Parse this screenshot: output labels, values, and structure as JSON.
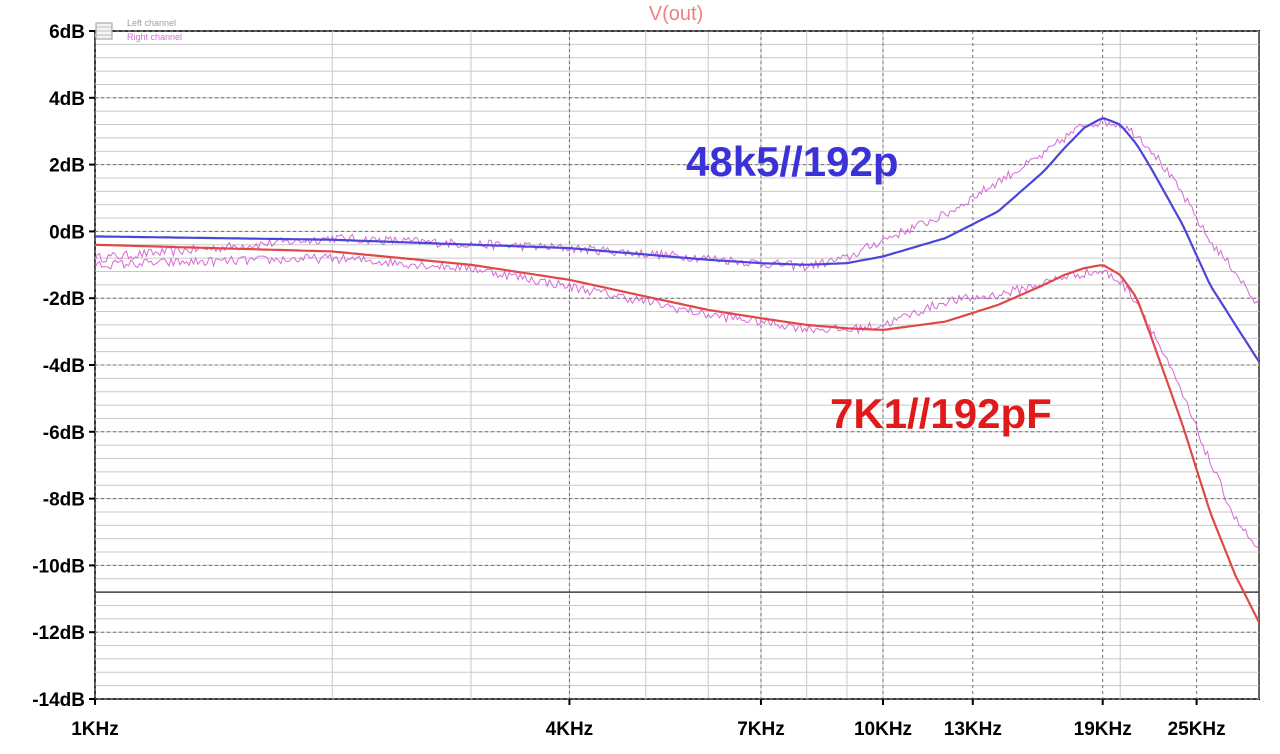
{
  "chart_data": {
    "type": "line",
    "title": "V(out)",
    "xscale": "log",
    "xlim": [
      1000,
      30000
    ],
    "ylim": [
      -14,
      6
    ],
    "y_ticks": [
      {
        "value": 6,
        "label": "6dB"
      },
      {
        "value": 4,
        "label": "4dB"
      },
      {
        "value": 2,
        "label": "2dB"
      },
      {
        "value": 0,
        "label": "0dB"
      },
      {
        "value": -2,
        "label": "-2dB"
      },
      {
        "value": -4,
        "label": "-4dB"
      },
      {
        "value": -6,
        "label": "-6dB"
      },
      {
        "value": -8,
        "label": "-8dB"
      },
      {
        "value": -10,
        "label": "-10dB"
      },
      {
        "value": -12,
        "label": "-12dB"
      },
      {
        "value": -14,
        "label": "-14dB"
      }
    ],
    "x_ticks": [
      {
        "value": 1000,
        "label": "1KHz"
      },
      {
        "value": 4000,
        "label": "4KHz"
      },
      {
        "value": 7000,
        "label": "7KHz"
      },
      {
        "value": 10000,
        "label": "10KHz"
      },
      {
        "value": 13000,
        "label": "13KHz"
      },
      {
        "value": 19000,
        "label": "19KHz"
      },
      {
        "value": 25000,
        "label": "25KHz"
      }
    ],
    "grid": true,
    "legend": {
      "placement": "top-left",
      "entries": [
        {
          "name": "Left channel",
          "color": "#a0a0a0"
        },
        {
          "name": "Right channel",
          "color": "#d070d0"
        }
      ]
    },
    "annotations": [
      {
        "text": "48k5//192p",
        "color": "#3a32d6"
      },
      {
        "text": "7K1//192pF",
        "color": "#e01a1a"
      }
    ],
    "series": [
      {
        "label_ref": "48k5//192p",
        "kind": "simulated",
        "color": "#4a46d8",
        "x": [
          1000,
          2000,
          4000,
          6000,
          7000,
          8000,
          9000,
          10000,
          12000,
          14000,
          16000,
          17000,
          18000,
          19000,
          20000,
          21000,
          22000,
          24000,
          26000,
          28000,
          30000
        ],
        "y": [
          -0.15,
          -0.25,
          -0.5,
          -0.85,
          -0.95,
          -1.0,
          -0.95,
          -0.75,
          -0.2,
          0.6,
          1.8,
          2.5,
          3.1,
          3.4,
          3.2,
          2.6,
          1.8,
          0.2,
          -1.6,
          -2.8,
          -3.9
        ]
      },
      {
        "label_ref": "48k5//192p",
        "kind": "measured",
        "color": "#d050d0",
        "x": [
          1000,
          2000,
          4000,
          6000,
          7000,
          8000,
          9000,
          10000,
          12000,
          14000,
          16000,
          17000,
          18000,
          19000,
          20000,
          21000,
          22000,
          24000,
          26000,
          28000,
          30000
        ],
        "y": [
          -0.8,
          -0.2,
          -0.5,
          -0.8,
          -0.95,
          -1.05,
          -0.8,
          -0.25,
          0.5,
          1.5,
          2.3,
          2.8,
          3.2,
          3.3,
          3.2,
          2.9,
          2.4,
          1.1,
          -0.3,
          -1.2,
          -2.3
        ]
      },
      {
        "label_ref": "7K1//192pF",
        "kind": "simulated",
        "color": "#e04848",
        "x": [
          1000,
          2000,
          3000,
          4000,
          5000,
          6000,
          7000,
          8000,
          9000,
          10000,
          12000,
          14000,
          16000,
          17000,
          18000,
          19000,
          20000,
          21000,
          22000,
          24000,
          26000,
          28000,
          30000
        ],
        "y": [
          -0.4,
          -0.6,
          -1.0,
          -1.45,
          -1.95,
          -2.35,
          -2.6,
          -2.8,
          -2.9,
          -2.95,
          -2.7,
          -2.2,
          -1.6,
          -1.3,
          -1.1,
          -1.0,
          -1.3,
          -2.0,
          -3.3,
          -5.8,
          -8.4,
          -10.3,
          -11.7
        ]
      },
      {
        "label_ref": "7K1//192pF",
        "kind": "measured",
        "color": "#d050d0",
        "x": [
          1000,
          2000,
          3000,
          4000,
          5000,
          6000,
          7000,
          8000,
          9000,
          10000,
          12000,
          14000,
          16000,
          17000,
          18000,
          19000,
          20000,
          21000,
          22000,
          24000,
          26000,
          28000,
          30000
        ],
        "y": [
          -1.0,
          -0.8,
          -1.1,
          -1.65,
          -2.1,
          -2.5,
          -2.7,
          -2.9,
          -2.95,
          -2.8,
          -2.1,
          -1.9,
          -1.55,
          -1.35,
          -1.25,
          -1.2,
          -1.5,
          -2.1,
          -3.0,
          -4.9,
          -6.9,
          -8.6,
          -9.6
        ]
      }
    ]
  }
}
